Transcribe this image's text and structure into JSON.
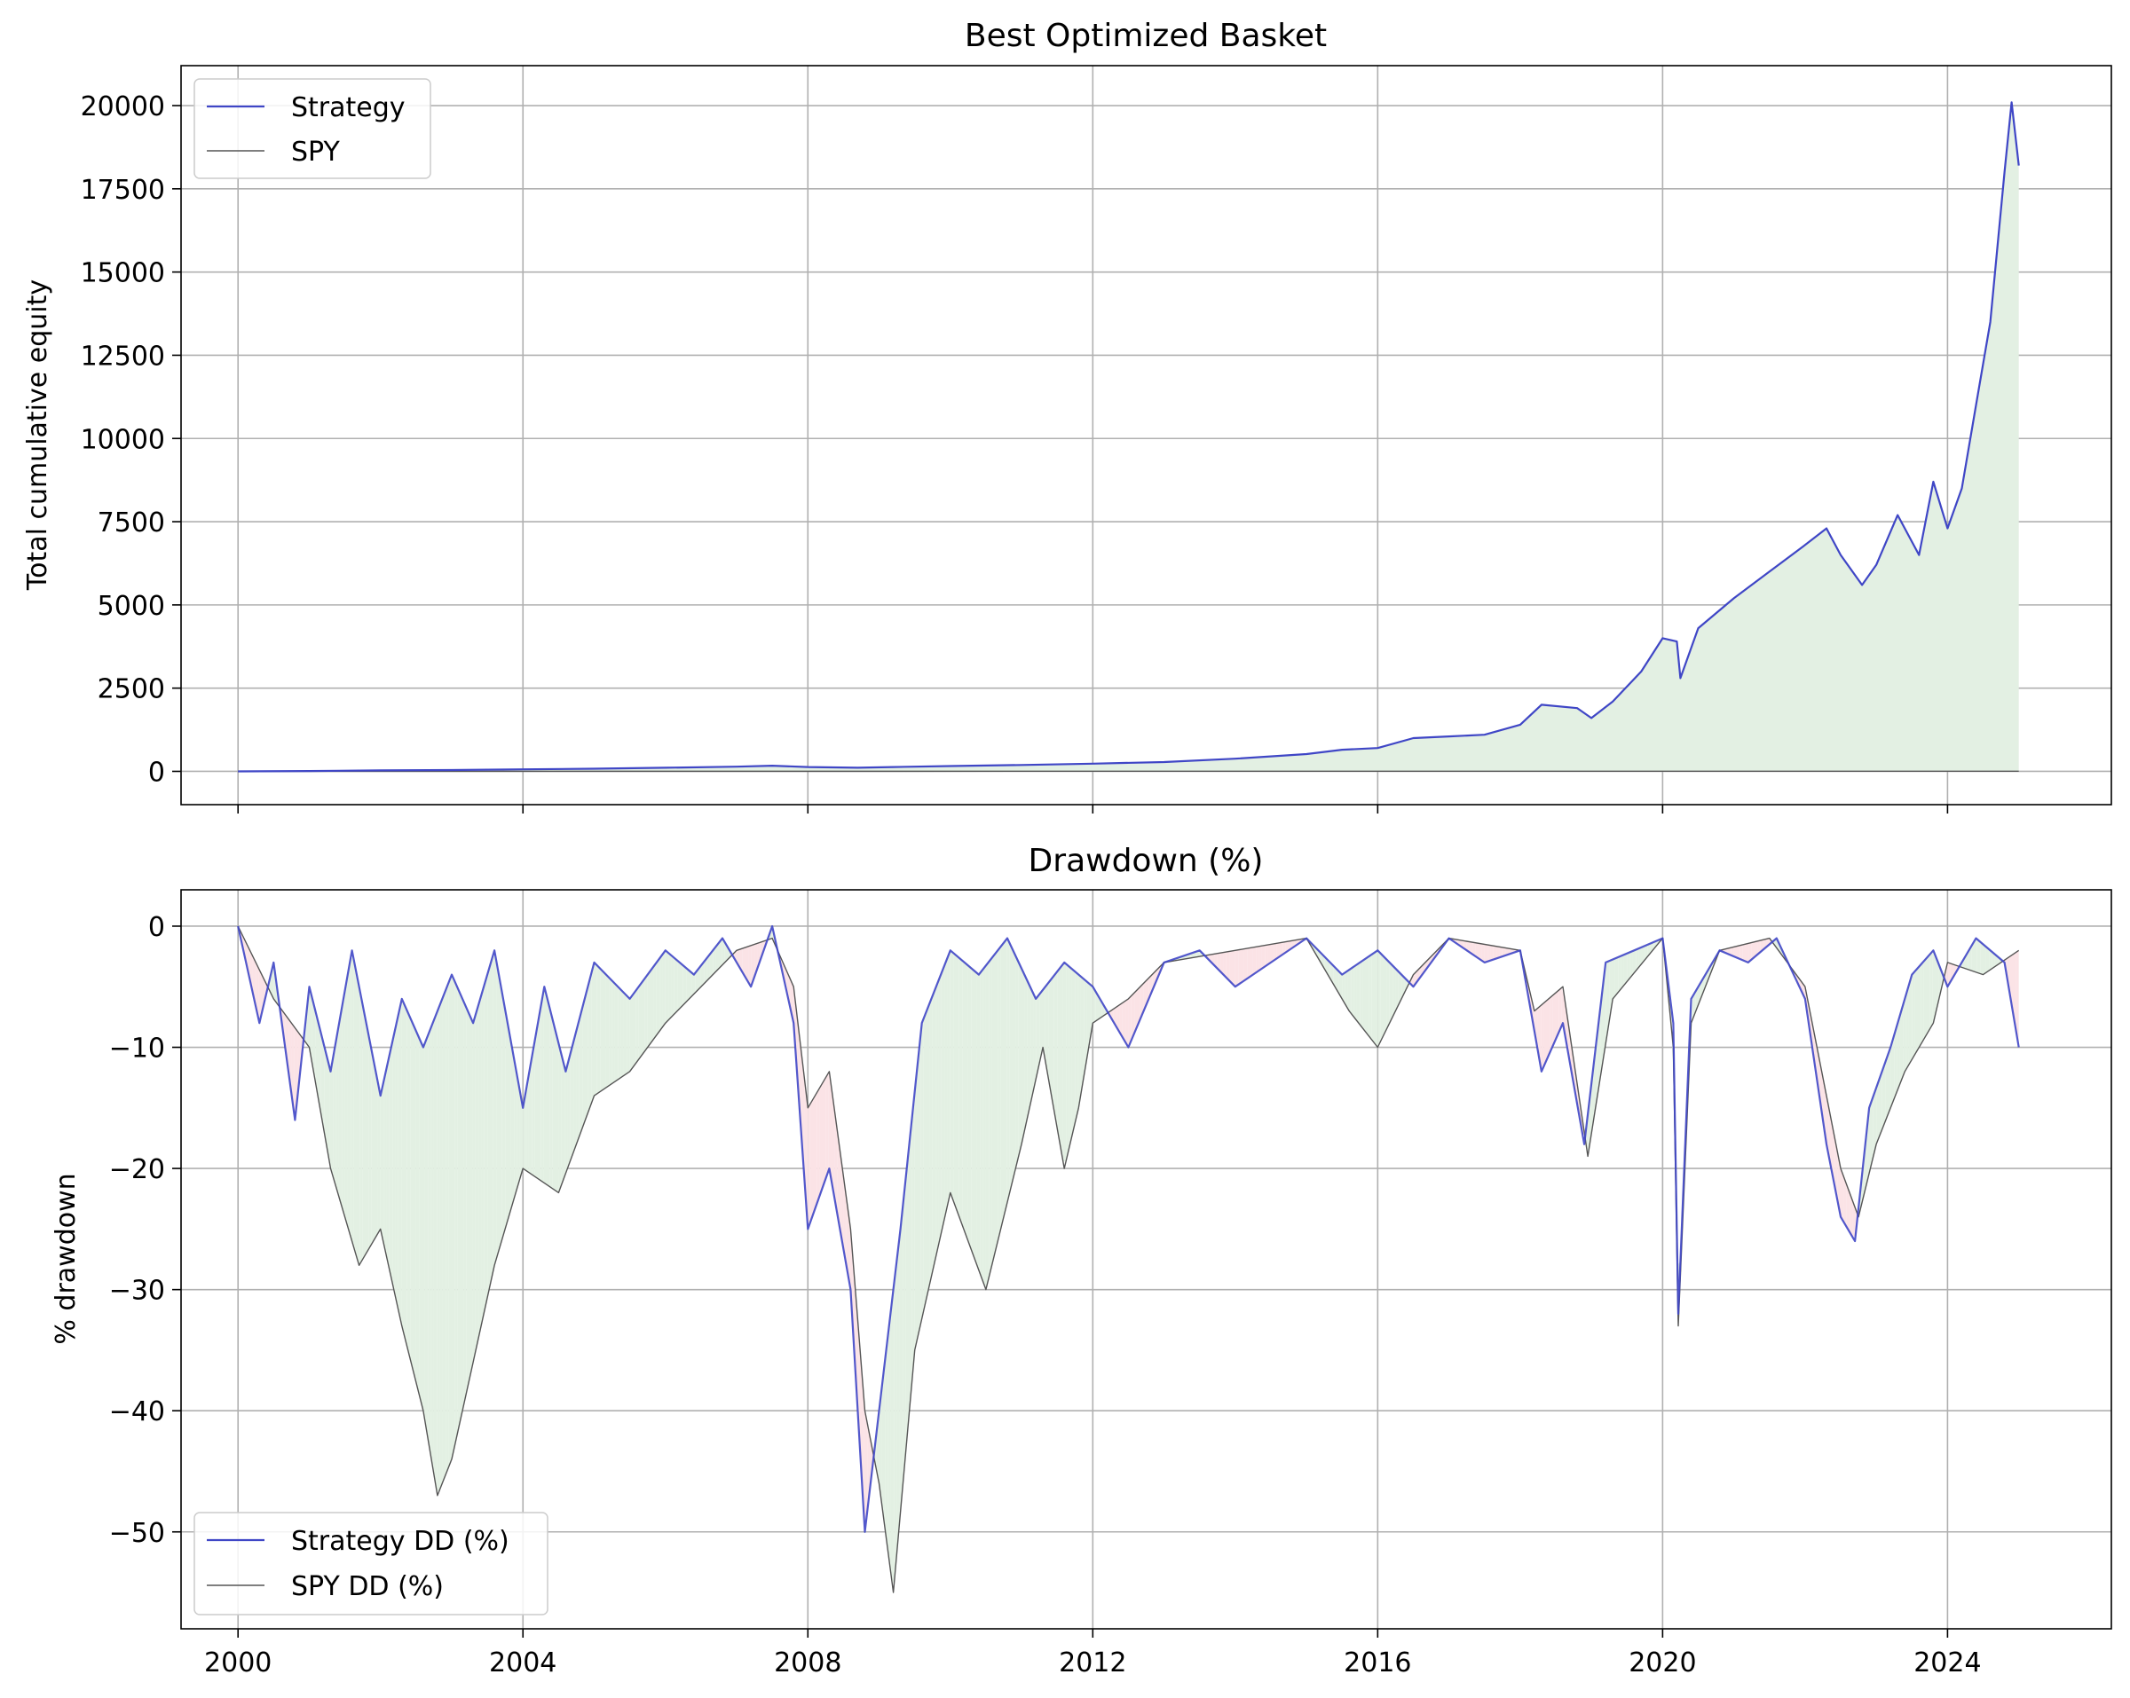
{
  "chart_data": [
    {
      "type": "line",
      "title": "Best Optimized Basket",
      "xlabel": "",
      "ylabel": "Total cumulative equity",
      "xlim": [
        1999.2,
        2026.3
      ],
      "ylim": [
        -1000,
        21200
      ],
      "x_ticks": [
        2000,
        2004,
        2008,
        2012,
        2016,
        2020,
        2024
      ],
      "y_ticks": [
        0,
        2500,
        5000,
        7500,
        10000,
        12500,
        15000,
        17500,
        20000
      ],
      "y_tick_labels": [
        "0",
        "2500",
        "5000",
        "7500",
        "10000",
        "12500",
        "15000",
        "17500",
        "20000"
      ],
      "grid": true,
      "legend": "upper-left",
      "fill_under_strategy": true,
      "colors": {
        "strategy": "#3f46c6",
        "spy": "#555555",
        "fill": "#e3f0e3"
      },
      "series": [
        {
          "name": "Strategy",
          "x": [
            2000.0,
            2001.0,
            2002.0,
            2003.0,
            2004.0,
            2005.0,
            2006.0,
            2007.0,
            2007.5,
            2008.0,
            2008.7,
            2009.2,
            2010.0,
            2011.0,
            2012.0,
            2013.0,
            2014.0,
            2015.0,
            2015.5,
            2016.0,
            2016.5,
            2017.0,
            2017.5,
            2018.0,
            2018.3,
            2018.8,
            2019.0,
            2019.3,
            2019.7,
            2020.0,
            2020.2,
            2020.25,
            2020.5,
            2021.0,
            2021.5,
            2022.0,
            2022.3,
            2022.5,
            2022.8,
            2023.0,
            2023.3,
            2023.6,
            2023.8,
            2024.0,
            2024.2,
            2024.4,
            2024.6,
            2024.8,
            2024.9,
            2025.0
          ],
          "y": [
            0,
            10,
            30,
            40,
            60,
            80,
            110,
            140,
            170,
            130,
            110,
            130,
            160,
            190,
            230,
            280,
            380,
            520,
            650,
            700,
            1000,
            1050,
            1100,
            1400,
            2000,
            1900,
            1600,
            2100,
            3000,
            4000,
            3900,
            2800,
            4300,
            5200,
            6000,
            6800,
            7300,
            6500,
            5600,
            6200,
            7700,
            6500,
            8700,
            7300,
            8500,
            11000,
            13500,
            18000,
            20100,
            18200
          ]
        },
        {
          "name": "SPY",
          "x": [
            2000.0,
            2025.0
          ],
          "y": [
            1,
            6
          ]
        }
      ]
    },
    {
      "type": "line",
      "title": "Drawdown (%)",
      "xlabel": "",
      "ylabel": "% drawdown",
      "xlim": [
        1999.2,
        2026.3
      ],
      "ylim": [
        -58,
        3
      ],
      "x_ticks": [
        2000,
        2004,
        2008,
        2012,
        2016,
        2020,
        2024
      ],
      "x_tick_labels": [
        "2000",
        "2004",
        "2008",
        "2012",
        "2016",
        "2020",
        "2024"
      ],
      "y_ticks": [
        0,
        -10,
        -20,
        -30,
        -40,
        -50
      ],
      "y_tick_labels": [
        "0",
        "−10",
        "−20",
        "−30",
        "−40",
        "−50"
      ],
      "grid": true,
      "legend": "lower-left",
      "fill_between_series": true,
      "colors": {
        "strategy": "#3f46c6",
        "spy": "#555555",
        "fill_strategy_better": "#e3f0e3",
        "fill_spy_better": "#fbe3e6"
      },
      "series": [
        {
          "name": "Strategy DD (%)",
          "x": [
            2000.0,
            2000.3,
            2000.5,
            2000.8,
            2001.0,
            2001.3,
            2001.6,
            2002.0,
            2002.3,
            2002.6,
            2003.0,
            2003.3,
            2003.6,
            2004.0,
            2004.3,
            2004.6,
            2005.0,
            2005.5,
            2006.0,
            2006.4,
            2006.8,
            2007.2,
            2007.5,
            2007.8,
            2008.0,
            2008.3,
            2008.6,
            2008.8,
            2009.0,
            2009.3,
            2009.6,
            2010.0,
            2010.4,
            2010.8,
            2011.2,
            2011.6,
            2012.0,
            2012.5,
            2013.0,
            2013.5,
            2014.0,
            2014.5,
            2015.0,
            2015.5,
            2016.0,
            2016.5,
            2017.0,
            2017.5,
            2018.0,
            2018.3,
            2018.6,
            2018.9,
            2019.2,
            2019.6,
            2020.0,
            2020.15,
            2020.22,
            2020.4,
            2020.8,
            2021.2,
            2021.6,
            2022.0,
            2022.3,
            2022.5,
            2022.7,
            2022.9,
            2023.2,
            2023.5,
            2023.8,
            2024.0,
            2024.4,
            2024.8,
            2025.0
          ],
          "y": [
            0,
            -8,
            -3,
            -16,
            -5,
            -12,
            -2,
            -14,
            -6,
            -10,
            -4,
            -8,
            -2,
            -15,
            -5,
            -12,
            -3,
            -6,
            -2,
            -4,
            -1,
            -5,
            0,
            -8,
            -25,
            -20,
            -30,
            -50,
            -40,
            -25,
            -8,
            -2,
            -4,
            -1,
            -6,
            -3,
            -5,
            -10,
            -3,
            -2,
            -5,
            -3,
            -1,
            -4,
            -2,
            -5,
            -1,
            -3,
            -2,
            -12,
            -8,
            -18,
            -3,
            -2,
            -1,
            -8,
            -32,
            -6,
            -2,
            -3,
            -1,
            -6,
            -18,
            -24,
            -26,
            -15,
            -10,
            -4,
            -2,
            -5,
            -1,
            -3,
            -10
          ]
        },
        {
          "name": "SPY DD (%)",
          "x": [
            2000.0,
            2000.5,
            2001.0,
            2001.3,
            2001.7,
            2002.0,
            2002.3,
            2002.6,
            2002.8,
            2003.0,
            2003.3,
            2003.6,
            2004.0,
            2004.5,
            2005.0,
            2005.5,
            2006.0,
            2006.5,
            2007.0,
            2007.5,
            2007.8,
            2008.0,
            2008.3,
            2008.6,
            2008.8,
            2009.0,
            2009.2,
            2009.5,
            2010.0,
            2010.5,
            2011.0,
            2011.3,
            2011.6,
            2011.8,
            2012.0,
            2012.5,
            2013.0,
            2014.0,
            2015.0,
            2015.6,
            2016.0,
            2016.5,
            2017.0,
            2018.0,
            2018.2,
            2018.6,
            2018.95,
            2019.3,
            2020.0,
            2020.15,
            2020.22,
            2020.4,
            2020.8,
            2021.5,
            2022.0,
            2022.3,
            2022.5,
            2022.75,
            2023.0,
            2023.4,
            2023.8,
            2024.0,
            2024.5,
            2025.0
          ],
          "y": [
            0,
            -6,
            -10,
            -20,
            -28,
            -25,
            -33,
            -40,
            -47,
            -44,
            -36,
            -28,
            -20,
            -22,
            -14,
            -12,
            -8,
            -5,
            -2,
            -1,
            -5,
            -15,
            -12,
            -25,
            -40,
            -46,
            -55,
            -35,
            -22,
            -30,
            -18,
            -10,
            -20,
            -15,
            -8,
            -6,
            -3,
            -2,
            -1,
            -7,
            -10,
            -4,
            -1,
            -2,
            -7,
            -5,
            -19,
            -6,
            -1,
            -10,
            -33,
            -8,
            -2,
            -1,
            -5,
            -14,
            -20,
            -24,
            -18,
            -12,
            -8,
            -3,
            -4,
            -2
          ]
        }
      ]
    }
  ]
}
